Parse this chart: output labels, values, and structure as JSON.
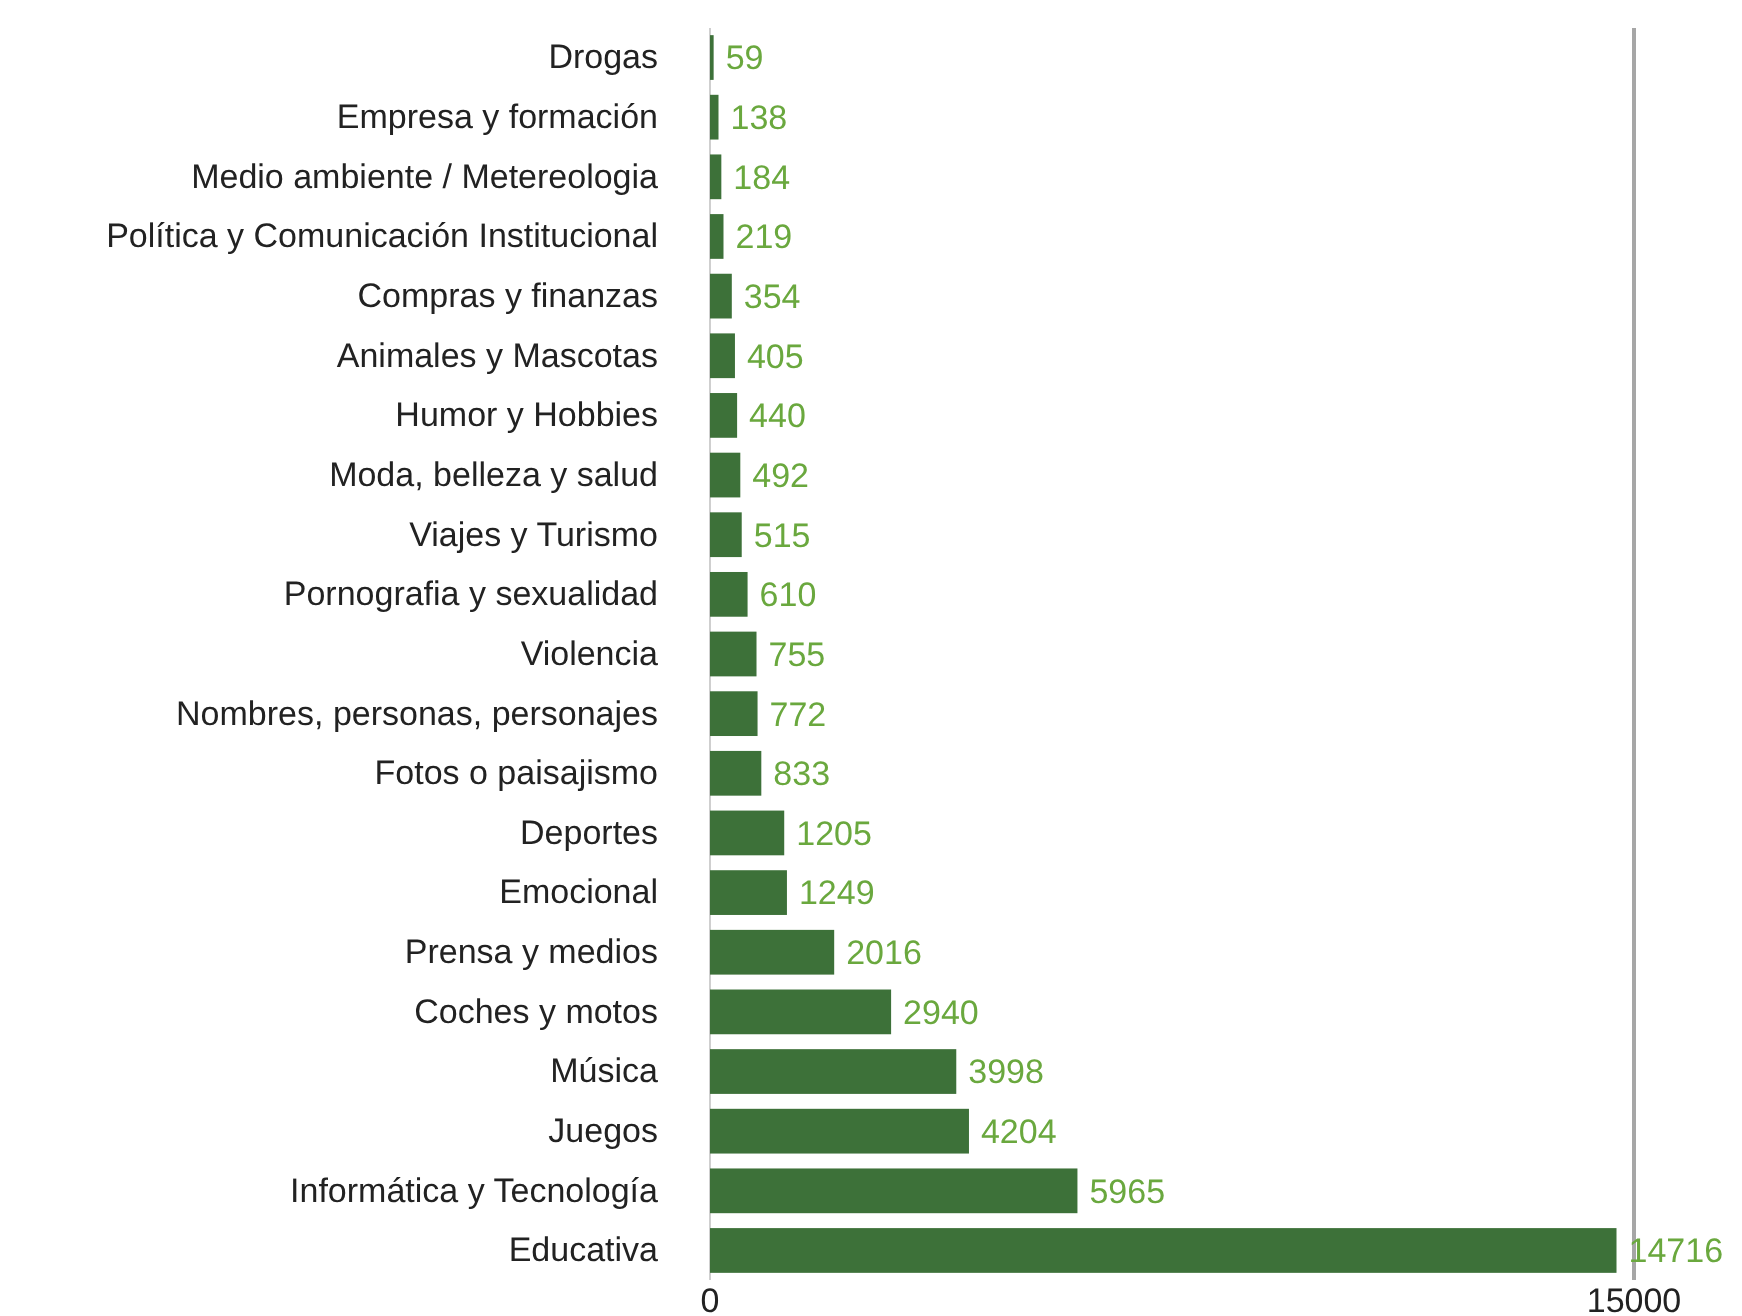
{
  "chart_data": {
    "type": "bar",
    "orientation": "horizontal",
    "categories": [
      "Drogas",
      "Empresa y formación",
      "Medio ambiente / Metereologia",
      "Política y Comunicación Institucional",
      "Compras y finanzas",
      "Animales y Mascotas",
      "Humor y Hobbies",
      "Moda, belleza y salud",
      "Viajes y Turismo",
      "Pornografia y sexualidad",
      "Violencia",
      "Nombres, personas, personajes",
      "Fotos o paisajismo",
      "Deportes",
      "Emocional",
      "Prensa y medios",
      "Coches y motos",
      "Música",
      "Juegos",
      "Informática y Tecnología",
      "Educativa"
    ],
    "values": [
      59,
      138,
      184,
      219,
      354,
      405,
      440,
      492,
      515,
      610,
      755,
      772,
      833,
      1205,
      1249,
      2016,
      2940,
      3998,
      4204,
      5965,
      14716
    ],
    "color": "#3d7139",
    "xlim": [
      0,
      15000
    ],
    "xticks": [
      0,
      15000
    ],
    "ref_lines": [
      {
        "axis": "x",
        "value": 15000,
        "color": "#a6a6a6"
      }
    ],
    "data_labels": true
  }
}
